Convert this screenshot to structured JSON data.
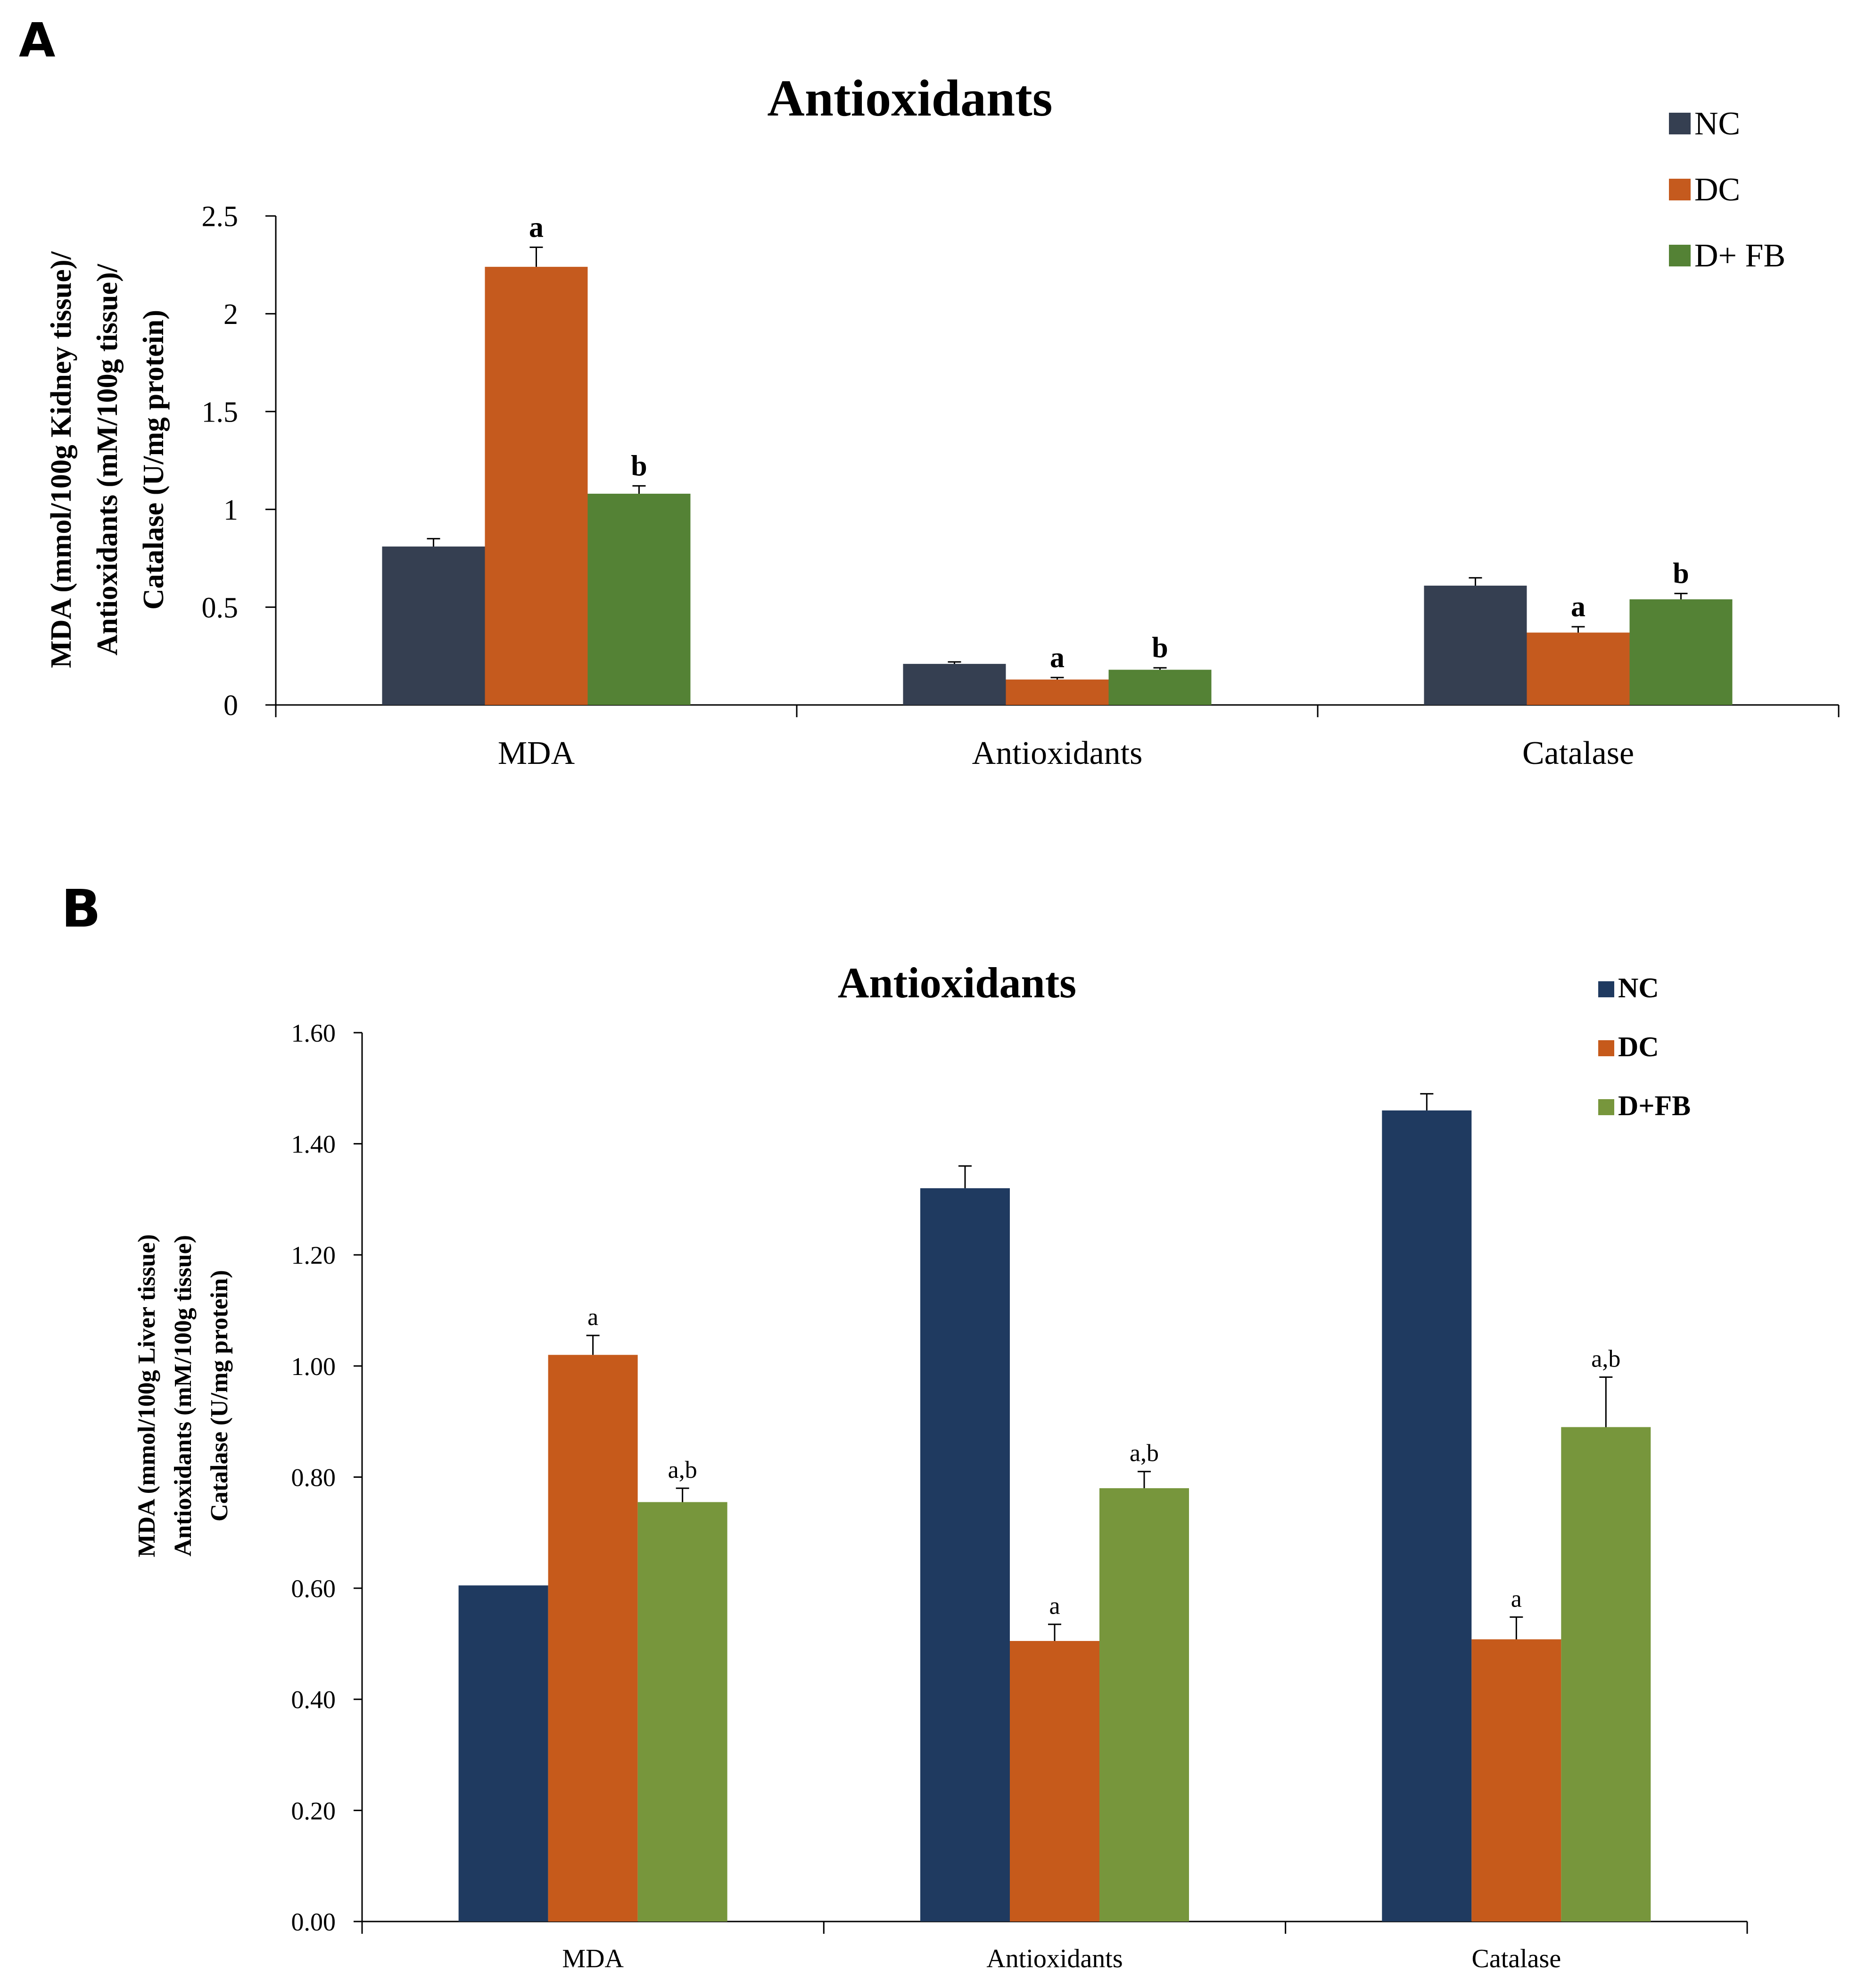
{
  "chart_data": [
    {
      "panel": "A",
      "type": "bar",
      "title": "Antioxidants",
      "ylabel_lines": [
        "MDA (mmol/100g Kidney tissue)/",
        "Antioxidants (mM/100g tissue)/",
        "Catalase (U/mg protein)"
      ],
      "xlabel": "",
      "categories": [
        "MDA",
        "Antioxidants",
        "Catalase"
      ],
      "ylim": [
        0,
        2.5
      ],
      "yticks": [
        0,
        0.5,
        1,
        1.5,
        2,
        2.5
      ],
      "ytick_labels": [
        "0",
        "0.5",
        "1",
        "1.5",
        "2",
        "2.5"
      ],
      "legend_position": "top-right",
      "series": [
        {
          "name": "NC",
          "color": "#353f51",
          "values": [
            0.81,
            0.21,
            0.61
          ],
          "errors": [
            0.04,
            0.01,
            0.04
          ],
          "annotations": [
            "",
            "",
            ""
          ]
        },
        {
          "name": "DC",
          "color": "#c55a1e",
          "values": [
            2.24,
            0.13,
            0.37
          ],
          "errors": [
            0.1,
            0.01,
            0.03
          ],
          "annotations": [
            "a",
            "a",
            "a"
          ]
        },
        {
          "name": "D+ FB",
          "color": "#548235",
          "values": [
            1.08,
            0.18,
            0.54
          ],
          "errors": [
            0.04,
            0.01,
            0.03
          ],
          "annotations": [
            "b",
            "b",
            "b"
          ]
        }
      ]
    },
    {
      "panel": "B",
      "type": "bar",
      "title": "Antioxidants",
      "ylabel_lines": [
        "MDA (mmol/100g Liver tissue)",
        "Antioxidants (mM/100g tissue)",
        "Catalase (U/mg protein)"
      ],
      "xlabel": "",
      "categories": [
        "MDA",
        "Antioxidants",
        "Catalase"
      ],
      "ylim": [
        0,
        1.6
      ],
      "yticks": [
        0,
        0.2,
        0.4,
        0.6,
        0.8,
        1.0,
        1.2,
        1.4,
        1.6
      ],
      "ytick_labels": [
        "0.00",
        "0.20",
        "0.40",
        "0.60",
        "0.80",
        "1.00",
        "1.20",
        "1.40",
        "1.60"
      ],
      "legend_position": "top-right",
      "series": [
        {
          "name": "NC",
          "color": "#1f3a60",
          "values": [
            0.605,
            1.32,
            1.46
          ],
          "errors": [
            0.0,
            0.04,
            0.03
          ],
          "annotations": [
            "",
            "",
            ""
          ]
        },
        {
          "name": "DC",
          "color": "#c65a1b",
          "values": [
            1.02,
            0.505,
            0.508
          ],
          "errors": [
            0.035,
            0.03,
            0.04
          ],
          "annotations": [
            "a",
            "a",
            "a"
          ]
        },
        {
          "name": "D+FB",
          "color": "#77963c",
          "values": [
            0.755,
            0.78,
            0.89
          ],
          "errors": [
            0.025,
            0.03,
            0.09
          ],
          "annotations": [
            "a,b",
            "a,b",
            "a,b"
          ]
        }
      ]
    }
  ]
}
